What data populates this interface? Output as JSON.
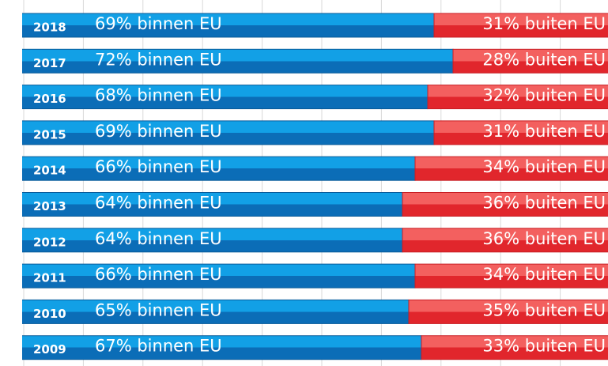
{
  "chart_data": {
    "type": "stacked-bar-horizontal",
    "categories": [
      "2018",
      "2017",
      "2016",
      "2015",
      "2014",
      "2013",
      "2012",
      "2011",
      "2010",
      "2009"
    ],
    "series": [
      {
        "color": "#0d96dd",
        "values": [
          69,
          72,
          68,
          69,
          66,
          64,
          64,
          66,
          65,
          67
        ],
        "value_labels": [
          "69% binnen EU",
          "72% binnen EU",
          "68% binnen EU",
          "69% binnen EU",
          "66% binnen EU",
          "64% binnen EU",
          "64% binnen EU",
          "66% binnen EU",
          "65% binnen EU",
          "67% binnen EU"
        ]
      },
      {
        "color": "#f0585b",
        "values": [
          31,
          28,
          32,
          31,
          34,
          36,
          36,
          34,
          35,
          33
        ],
        "value_labels": [
          "31% buiten EU",
          "28% buiten EU",
          "32% buiten EU",
          "31% buiten EU",
          "34% buiten EU",
          "36% buiten EU",
          "36% buiten EU",
          "34% buiten EU",
          "35% buiten EU",
          "33% buiten EU"
        ]
      }
    ],
    "xlim": [
      0,
      100
    ]
  }
}
